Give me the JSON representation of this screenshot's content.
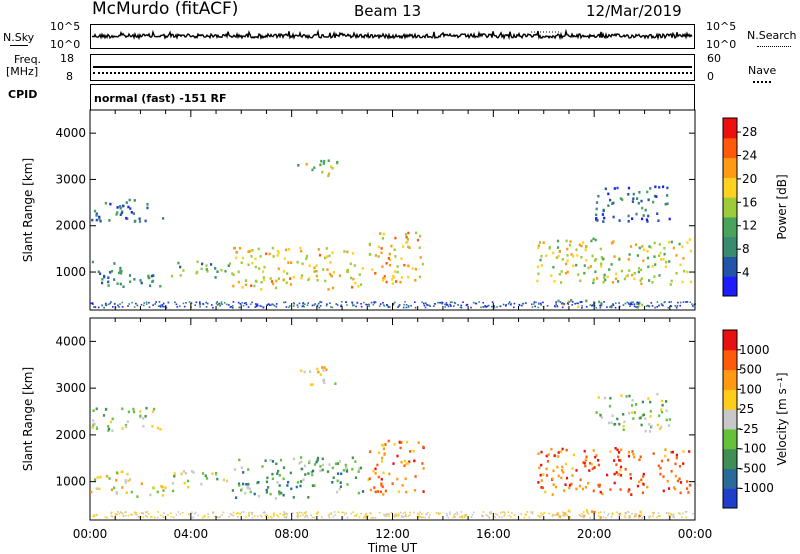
{
  "header": {
    "station": "McMurdo (fitACF)",
    "beam": "Beam 13",
    "date": "12/Mar/2019"
  },
  "sky_panel": {
    "left_label": "N.Sky",
    "left_ticks": [
      "10^5",
      "10^0"
    ],
    "right_label": "N.Search",
    "right_ticks": [
      "10^5",
      "10^0"
    ]
  },
  "freq_panel": {
    "left_label_line1": "Freq.",
    "left_label_line2": "[MHz]",
    "left_ticks": [
      "18",
      "8"
    ],
    "right_label": "Nave",
    "right_ticks": [
      "60",
      "0"
    ]
  },
  "cpid_panel": {
    "label": "CPID",
    "mode_text": "normal (fast) -151 RF"
  },
  "chart_data": [
    {
      "type": "heatmap",
      "title": "",
      "xlabel": "Time UT",
      "ylabel": "Slant Range [km]",
      "xlim": [
        0,
        24
      ],
      "ylim": [
        180,
        4500
      ],
      "y_ticks": [
        1000,
        2000,
        3000,
        4000
      ],
      "colorbar": {
        "label": "Power [dB]",
        "ticks": [
          "4",
          "8",
          "12",
          "16",
          "20",
          "24",
          "28"
        ],
        "range": [
          0,
          30
        ],
        "colors": [
          "#1c1cff",
          "#2255aa",
          "#3a8a70",
          "#4aa35a",
          "#9ccc3a",
          "#ffd21f",
          "#ff9a14",
          "#ff5a0a",
          "#ee1010"
        ]
      },
      "scatter_regions": [
        {
          "t0": 0.0,
          "t1": 1.6,
          "r0": 700,
          "r1": 1300,
          "level": 0.28
        },
        {
          "t0": 1.6,
          "t1": 3.5,
          "r0": 700,
          "r1": 1000,
          "level": 0.3
        },
        {
          "t0": 3.3,
          "t1": 5.6,
          "r0": 900,
          "r1": 1250,
          "level": 0.35
        },
        {
          "t0": 5.6,
          "t1": 10.8,
          "r0": 650,
          "r1": 1550,
          "level": 0.62
        },
        {
          "t0": 11.0,
          "t1": 13.2,
          "r0": 750,
          "r1": 1900,
          "level": 0.65
        },
        {
          "t0": 17.7,
          "t1": 23.8,
          "r0": 750,
          "r1": 1750,
          "level": 0.55
        },
        {
          "t0": 8.2,
          "t1": 9.8,
          "r0": 3100,
          "r1": 3500,
          "level": 0.5
        },
        {
          "t0": 0.0,
          "t1": 3.0,
          "r0": 2100,
          "r1": 2600,
          "level": 0.2
        },
        {
          "t0": 20.0,
          "t1": 23.0,
          "r0": 2100,
          "r1": 2900,
          "level": 0.2
        },
        {
          "t0": 18.5,
          "t1": 22.0,
          "r0": 250,
          "r1": 420,
          "level": 0.55
        }
      ]
    },
    {
      "type": "heatmap",
      "title": "",
      "xlabel": "Time UT",
      "ylabel": "Slant Range [km]",
      "xlim": [
        0,
        24
      ],
      "ylim": [
        180,
        4500
      ],
      "y_ticks": [
        1000,
        2000,
        3000,
        4000
      ],
      "x_tick_labels": [
        "00:00",
        "04:00",
        "08:00",
        "12:00",
        "16:00",
        "20:00",
        "00:00"
      ],
      "x_tick_values": [
        0,
        4,
        8,
        12,
        16,
        20,
        24
      ],
      "colorbar": {
        "label": "Velocity [m s⁻¹]",
        "ticks": [
          "1000",
          "500",
          "100",
          "25",
          "-25",
          "-100",
          "-500",
          "-1000"
        ],
        "colors": [
          "#1e3fcc",
          "#2a6a9a",
          "#3f8f55",
          "#64c23a",
          "#c8c8c8",
          "#ffcc1a",
          "#ff9a12",
          "#ff5a0a",
          "#e81010"
        ]
      },
      "scatter_regions": [
        {
          "t0": 0.0,
          "t1": 1.6,
          "r0": 700,
          "r1": 1300,
          "level": 0.55
        },
        {
          "t0": 1.6,
          "t1": 3.5,
          "r0": 700,
          "r1": 1000,
          "level": 0.55
        },
        {
          "t0": 3.3,
          "t1": 5.6,
          "r0": 900,
          "r1": 1250,
          "level": 0.45
        },
        {
          "t0": 5.6,
          "t1": 10.8,
          "r0": 650,
          "r1": 1550,
          "level": 0.35
        },
        {
          "t0": 11.0,
          "t1": 13.2,
          "r0": 750,
          "r1": 1900,
          "level": 0.75
        },
        {
          "t0": 17.7,
          "t1": 23.8,
          "r0": 750,
          "r1": 1750,
          "level": 0.82
        },
        {
          "t0": 8.2,
          "t1": 9.8,
          "r0": 3100,
          "r1": 3500,
          "level": 0.6
        },
        {
          "t0": 0.0,
          "t1": 3.0,
          "r0": 2100,
          "r1": 2600,
          "level": 0.45
        },
        {
          "t0": 20.0,
          "t1": 23.0,
          "r0": 2100,
          "r1": 2900,
          "level": 0.45
        },
        {
          "t0": 18.5,
          "t1": 22.0,
          "r0": 250,
          "r1": 420,
          "level": 0.7
        }
      ]
    }
  ]
}
